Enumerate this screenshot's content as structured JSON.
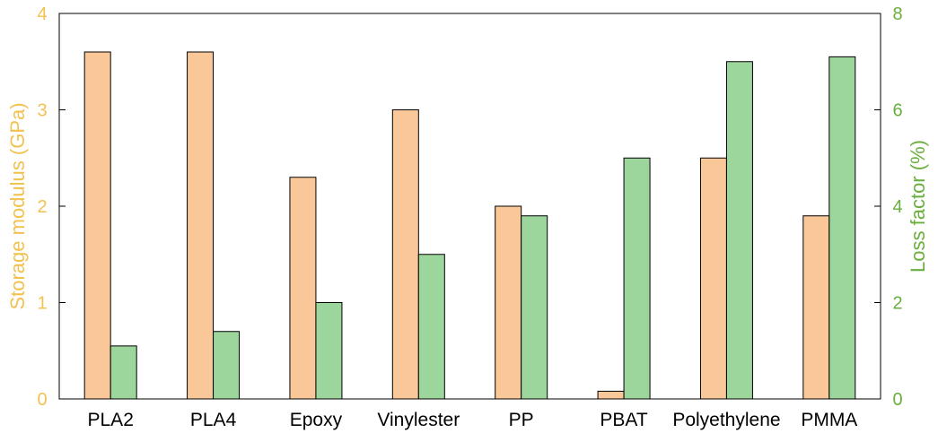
{
  "chart_data": {
    "type": "bar",
    "title": "",
    "categories": [
      "PLA2",
      "PLA4",
      "Epoxy",
      "Vinylester",
      "PP",
      "PBAT",
      "Polyethylene",
      "PMMA"
    ],
    "series": [
      {
        "name": "Storage modulus (GPa)",
        "axis": "left",
        "color": "#FAC898",
        "values": [
          3.6,
          3.6,
          2.3,
          3.0,
          2.0,
          0.08,
          2.5,
          1.9
        ]
      },
      {
        "name": "Loss factor (%)",
        "axis": "right",
        "color": "#9CD69C",
        "values": [
          1.1,
          1.4,
          2.0,
          3.0,
          3.8,
          5.0,
          7.0,
          7.1
        ]
      }
    ],
    "ylabel_left": "Storage modulus (GPa)",
    "ylabel_right": "Loss factor (%)",
    "ylim_left": [
      0,
      4
    ],
    "ylim_right": [
      0,
      8
    ],
    "yticks_left": [
      "0",
      "1",
      "2",
      "3",
      "4"
    ],
    "yticks_right": [
      "0",
      "2",
      "4",
      "6",
      "8"
    ],
    "left_axis_color": "#F2C14E",
    "right_axis_color": "#6AAF3D",
    "grid": false,
    "legend": "none"
  }
}
